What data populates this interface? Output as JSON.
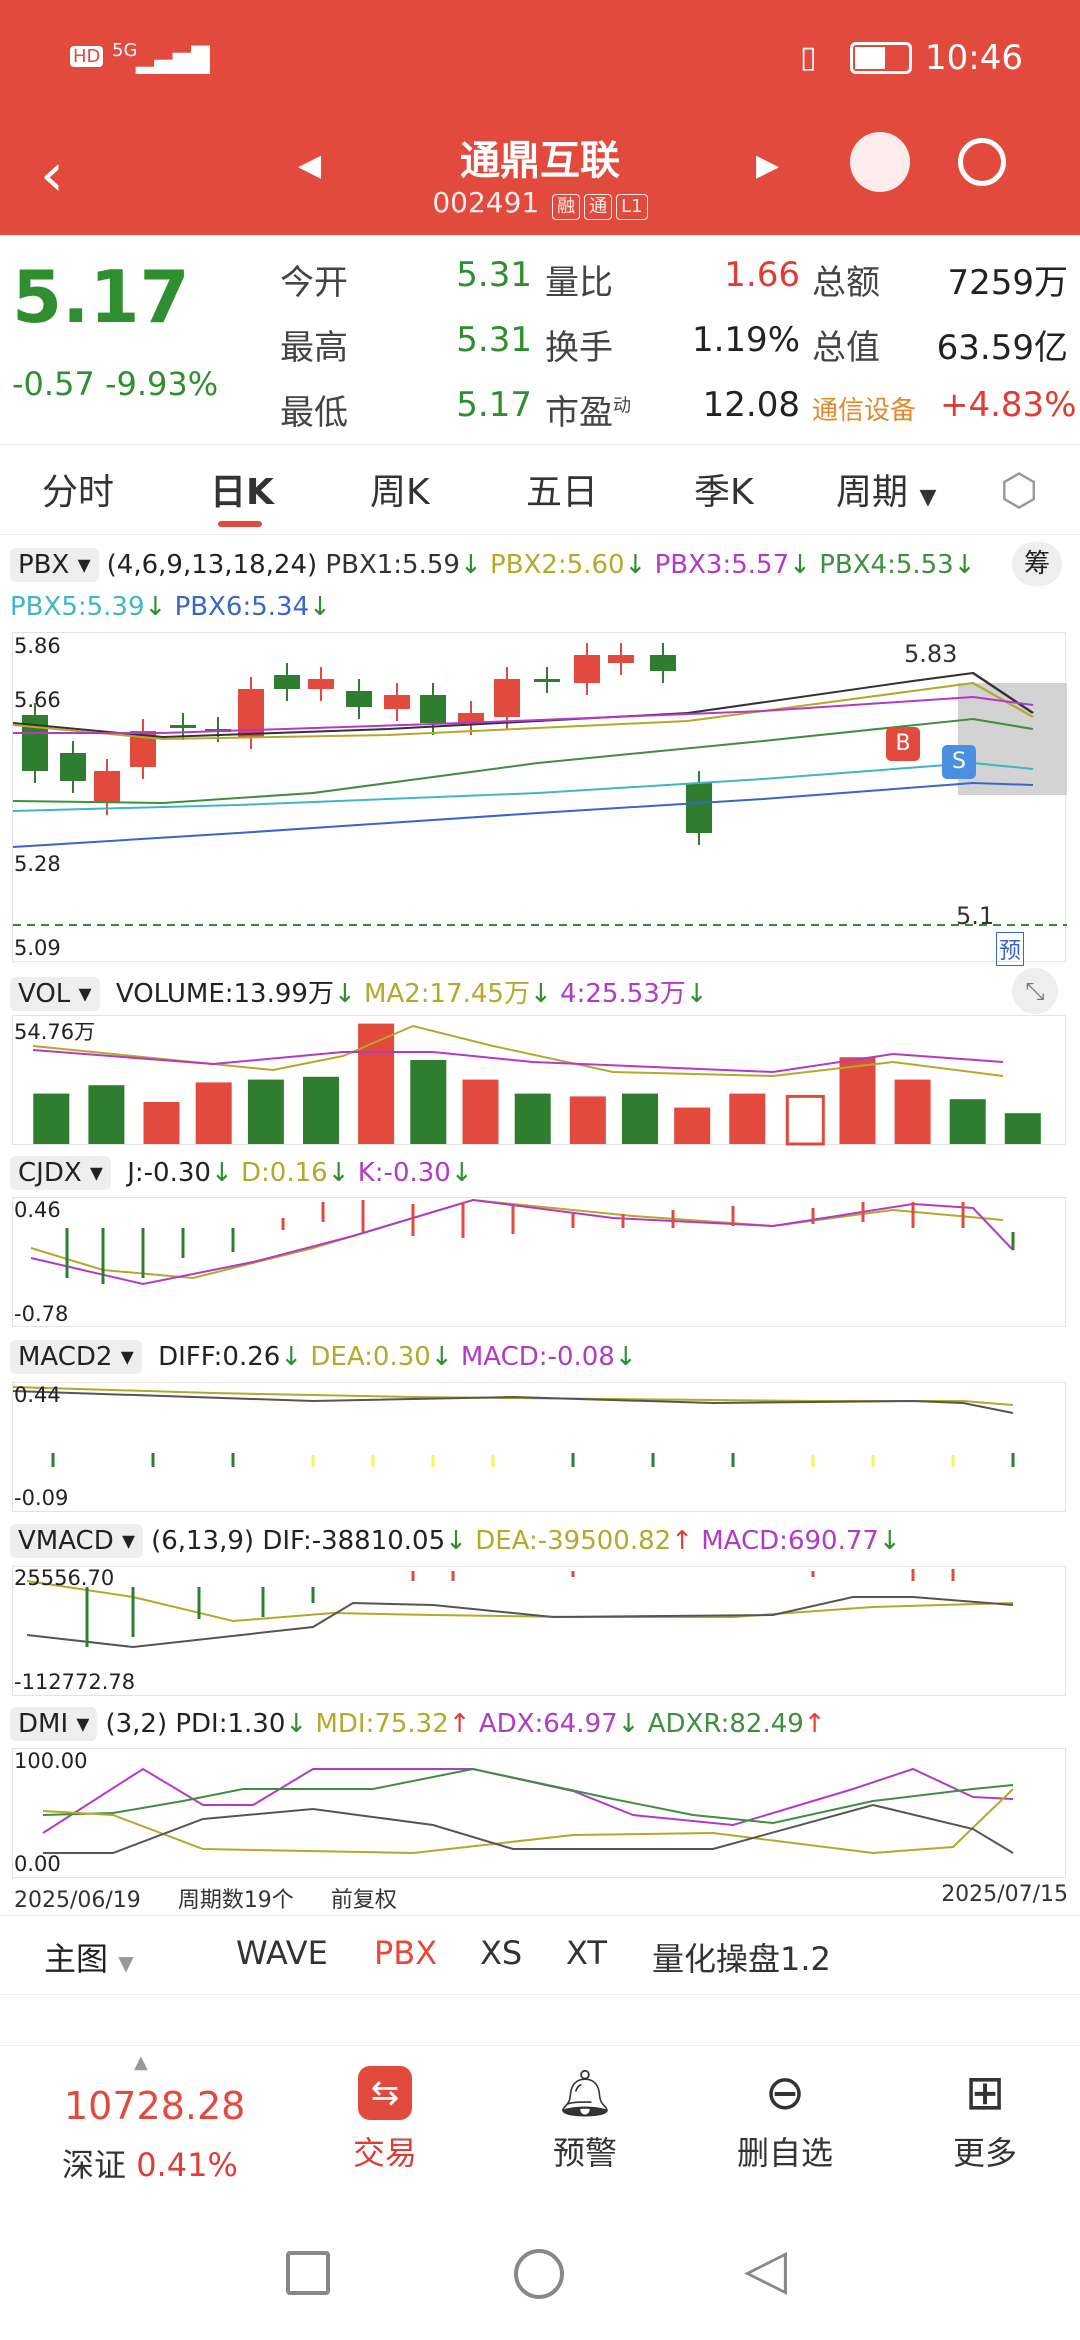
{
  "status": {
    "hd": "HD",
    "net": "5G",
    "time": "10:46"
  },
  "header": {
    "title": "通鼎互联",
    "code": "002491",
    "tags": [
      "融",
      "通",
      "L1"
    ]
  },
  "quote": {
    "price": "5.17",
    "change": "-0.57",
    "change_pct": "-9.93%",
    "fields": [
      {
        "label": "今开",
        "value": "5.31"
      },
      {
        "label": "最高",
        "value": "5.31"
      },
      {
        "label": "最低",
        "value": "5.17"
      },
      {
        "label": "量比",
        "value": "1.66"
      },
      {
        "label": "换手",
        "value": "1.19%"
      },
      {
        "label": "市盈",
        "sup": "动",
        "value": "12.08"
      },
      {
        "label": "总额",
        "value": "7259万"
      },
      {
        "label": "总值",
        "value": "63.59亿"
      },
      {
        "label": "通信设备",
        "value": "+4.83%"
      }
    ]
  },
  "tabs": [
    "分时",
    "日K",
    "周K",
    "五日",
    "季K",
    "周期"
  ],
  "pbx": {
    "name": "PBX",
    "params": "(4,6,9,13,18,24)",
    "vals": [
      "PBX1:5.59",
      "PBX2:5.60",
      "PBX3:5.57",
      "PBX4:5.53",
      "PBX5:5.39",
      "PBX6:5.34"
    ],
    "badge": "筹",
    "y": [
      "5.86",
      "5.66",
      "5.28",
      "5.09"
    ],
    "hi": "5.83",
    "lo": "5.1",
    "pred": "预",
    "buy": "B",
    "sell": "S"
  },
  "vol": {
    "name": "VOL",
    "vals": [
      "VOLUME:13.99万",
      "MA2:17.45万",
      "4:25.53万"
    ],
    "y": "54.76万"
  },
  "cjdx": {
    "name": "CJDX",
    "vals": [
      "J:-0.30",
      "D:0.16",
      "K:-0.30"
    ],
    "y": [
      "0.46",
      "-0.78"
    ]
  },
  "macd": {
    "name": "MACD2",
    "vals": [
      "DIFF:0.26",
      "DEA:0.30",
      "MACD:-0.08"
    ],
    "y": [
      "0.44",
      "-0.09"
    ]
  },
  "vmacd": {
    "name": "VMACD",
    "params": "(6,13,9)",
    "vals": [
      "DIF:-38810.05",
      "DEA:-39500.82",
      "MACD:690.77"
    ],
    "y": [
      "25556.70",
      "-112772.78"
    ]
  },
  "dmi": {
    "name": "DMI",
    "params": "(3,2)",
    "vals": [
      "PDI:1.30",
      "MDI:75.32",
      "ADX:64.97",
      "ADXR:82.49"
    ],
    "y": [
      "100.00",
      "0.00"
    ]
  },
  "footer": {
    "start": "2025/06/19",
    "period": "周期数19个",
    "adj": "前复权",
    "end": "2025/07/15"
  },
  "bottomtabs": [
    "主图",
    "WAVE",
    "PBX",
    "XS",
    "XT",
    "量化操盘1.2"
  ],
  "ticker": {
    "value": "10728.28",
    "name": "深证",
    "pct": "0.41%"
  },
  "nav": [
    "交易",
    "预警",
    "删自选",
    "更多"
  ],
  "colors": {
    "red": "#e24a3d",
    "green": "#2f8f2f"
  }
}
